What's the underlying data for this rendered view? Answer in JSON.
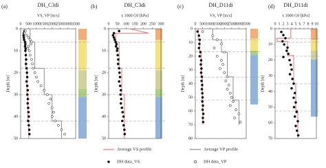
{
  "chart_data": [
    {
      "type": "scatter",
      "panel": "(a)",
      "title": "DH_C3di",
      "xlabel": "VS, VP [m/s]",
      "ylabel": "Depth [m]",
      "xlim": [
        0,
        3500
      ],
      "xticks": [
        0,
        500,
        1000,
        1500,
        2000,
        2500,
        3000,
        3500
      ],
      "ylim": [
        0,
        50
      ],
      "yticks": [
        0,
        10,
        20,
        30,
        40,
        50
      ],
      "series": [
        {
          "name": "Average VS profile",
          "color": "#e8777a",
          "marker": "none",
          "x": [
            250,
            250,
            330,
            330,
            400,
            400,
            450,
            450,
            520,
            520
          ],
          "values": [
            0,
            6,
            6,
            18,
            18,
            30,
            30,
            42,
            42,
            50
          ]
        },
        {
          "name": "Average VP profile",
          "color": "#8c8c8c",
          "marker": "none",
          "x": [
            600,
            600,
            900,
            900,
            1500,
            1500,
            2000,
            2000,
            2600,
            2600
          ],
          "values": [
            0,
            6,
            6,
            18,
            18,
            30,
            30,
            42,
            42,
            50
          ]
        },
        {
          "name": "DH data_VS",
          "color": "#111111",
          "marker": "filled",
          "x": [
            250,
            200,
            180,
            200,
            220,
            280,
            300,
            280,
            320,
            300,
            330,
            350,
            340,
            380,
            400,
            420,
            380,
            420,
            450,
            430,
            460,
            450,
            480,
            500,
            520,
            480,
            520,
            550,
            560
          ],
          "values": [
            1,
            2,
            3,
            4,
            5,
            6,
            7,
            8,
            9,
            10,
            12,
            14,
            16,
            18,
            20,
            22,
            24,
            26,
            28,
            30,
            32,
            34,
            36,
            38,
            40,
            42,
            44,
            46,
            48
          ]
        },
        {
          "name": "DH data_VP",
          "color": "#111111",
          "marker": "open",
          "x": [
            300,
            250,
            400,
            500,
            600,
            700,
            650,
            500,
            450,
            550,
            600,
            700,
            750,
            800,
            900,
            1000,
            1100,
            1300,
            1500,
            1700,
            1900,
            1800,
            2000,
            2100,
            2000,
            2200,
            2400,
            2600,
            2800
          ],
          "values": [
            1,
            2,
            3,
            4,
            5,
            6,
            7,
            8,
            9,
            10,
            12,
            14,
            16,
            18,
            20,
            22,
            24,
            26,
            28,
            30,
            32,
            34,
            36,
            38,
            40,
            42,
            44,
            46,
            48
          ]
        }
      ]
    },
    {
      "type": "scatter",
      "panel": "(b)",
      "title": "DH_C3di",
      "xlabel": "x 1000 G0 [kPa]",
      "ylabel": "Depth [m]",
      "xlim": [
        0,
        300
      ],
      "xticks": [
        0,
        50,
        100,
        150,
        200,
        250,
        300
      ],
      "ylim": [
        0,
        50
      ],
      "yticks": [
        0,
        10,
        20,
        30,
        40,
        50
      ],
      "series": [
        {
          "color": "#e8777a",
          "marker": "none",
          "x": [
            120,
            230,
            40,
            40,
            60,
            60,
            75,
            75,
            90,
            90
          ],
          "values": [
            0,
            2,
            2,
            6,
            6,
            18,
            18,
            30,
            30,
            50
          ]
        },
        {
          "color": "#111111",
          "marker": "filled",
          "x": [
            60,
            30,
            25,
            30,
            35,
            40,
            45,
            42,
            50,
            48,
            52,
            55,
            54,
            60,
            62,
            65,
            60,
            66,
            70,
            68,
            72,
            70,
            76,
            80,
            85,
            78,
            86,
            90,
            92
          ],
          "values": [
            1,
            2,
            3,
            4,
            5,
            6,
            7,
            8,
            9,
            10,
            12,
            14,
            16,
            18,
            20,
            22,
            24,
            26,
            28,
            30,
            32,
            34,
            36,
            38,
            40,
            42,
            44,
            46,
            48
          ]
        }
      ]
    },
    {
      "type": "scatter",
      "panel": "(c)",
      "title": "DH_D11di",
      "xlabel": "VS, VP [m/s]",
      "ylabel": "Depth [m]",
      "xlim": [
        0,
        3500
      ],
      "xticks": [
        0,
        500,
        1000,
        1500,
        2000,
        2500,
        3000,
        3500
      ],
      "ylim": [
        0,
        80
      ],
      "yticks": [
        0,
        10,
        20,
        30,
        40,
        50,
        60,
        70,
        80
      ],
      "series": [
        {
          "color": "#e8777a",
          "marker": "none",
          "x": [
            200,
            200,
            300,
            300,
            400,
            400,
            480,
            480,
            520,
            520
          ],
          "values": [
            0,
            8,
            8,
            17,
            17,
            35,
            35,
            52,
            52,
            70
          ]
        },
        {
          "color": "#8c8c8c",
          "marker": "none",
          "x": [
            1200,
            1200,
            1800,
            1800,
            2200,
            2200,
            2600,
            2600,
            3000,
            3000
          ],
          "values": [
            0,
            8,
            8,
            17,
            17,
            35,
            35,
            52,
            52,
            70
          ]
        },
        {
          "color": "#111111",
          "marker": "filled",
          "x": [
            150,
            250,
            300,
            280,
            250,
            350,
            300,
            400,
            380,
            420,
            400,
            450,
            430,
            470,
            450,
            480,
            500,
            480,
            520,
            500,
            550,
            520,
            540
          ],
          "values": [
            2,
            5,
            8,
            11,
            14,
            17,
            20,
            23,
            26,
            29,
            32,
            35,
            38,
            41,
            44,
            47,
            50,
            53,
            56,
            59,
            62,
            65,
            68
          ]
        },
        {
          "color": "#111111",
          "marker": "open",
          "x": [
            500,
            1200,
            1500,
            1800,
            1300,
            2000,
            1500,
            1800,
            1900,
            1700,
            2000,
            2200,
            2100,
            2300,
            2200,
            2400,
            2500,
            2600,
            2400,
            2800,
            3000,
            2700,
            3100
          ],
          "values": [
            2,
            5,
            8,
            11,
            14,
            17,
            20,
            23,
            26,
            29,
            32,
            35,
            38,
            41,
            44,
            47,
            50,
            53,
            56,
            59,
            62,
            65,
            68
          ]
        }
      ]
    },
    {
      "type": "scatter",
      "panel": "(d)",
      "title": "DH_D11di",
      "xlabel": "x 1000 G0 [kPa]",
      "ylabel": "Depth [m]",
      "xlim": [
        0,
        10
      ],
      "xticks": [
        0,
        1,
        2,
        3,
        4,
        5,
        6,
        7,
        8,
        9,
        10
      ],
      "ylim": [
        0,
        70
      ],
      "yticks": [
        0,
        10,
        20,
        30,
        40,
        50,
        60,
        70
      ],
      "series": [
        {
          "color": "#e8777a",
          "marker": "none",
          "x": [
            3.8,
            3.8,
            0.5,
            0.5,
            3,
            3,
            4.5,
            4.5,
            5,
            5,
            5.5,
            5.5
          ],
          "values": [
            0,
            6,
            6,
            8,
            8,
            17,
            17,
            35,
            35,
            52,
            52,
            70
          ]
        },
        {
          "color": "#111111",
          "marker": "filled",
          "x": [
            1.5,
            2,
            2.5,
            1.8,
            2.2,
            3,
            2.8,
            3.2,
            2,
            3.5,
            3.8,
            4,
            3.6,
            4.2,
            4.5,
            4,
            4.8,
            4.5,
            5,
            4.6,
            5.2,
            4.8,
            5.5,
            5,
            5.3,
            5.6
          ],
          "values": [
            2,
            4,
            6,
            8,
            10,
            12,
            14,
            16,
            18,
            20,
            23,
            26,
            29,
            32,
            35,
            38,
            41,
            44,
            47,
            50,
            53,
            56,
            59,
            62,
            65,
            68
          ]
        }
      ]
    }
  ]
}
